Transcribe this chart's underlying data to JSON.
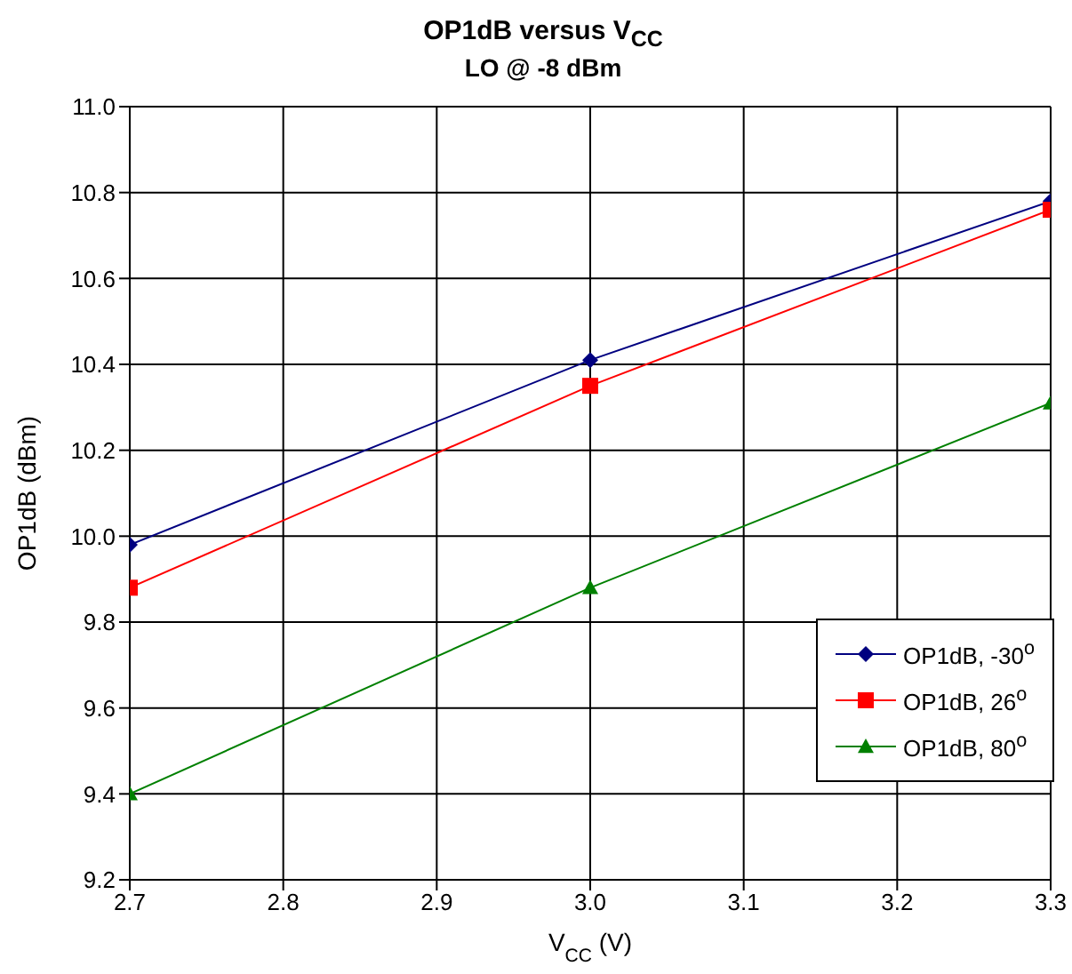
{
  "chart_data": {
    "type": "line",
    "title": "OP1dB versus V$_{CC}$",
    "subtitle": "LO @ -8 dBm",
    "xlabel": "V$_{CC}$ (V)",
    "ylabel": "OP1dB (dBm)",
    "x": [
      2.7,
      3.0,
      3.3
    ],
    "series": [
      {
        "name": "OP1dB, -30$^{o}$",
        "color": "#000080",
        "marker": "diamond",
        "values": [
          9.98,
          10.41,
          10.78
        ]
      },
      {
        "name": "OP1dB, 26$^{o}$",
        "color": "#ff0000",
        "marker": "square",
        "values": [
          9.88,
          10.35,
          10.76
        ]
      },
      {
        "name": "OP1dB, 80$^{o}$",
        "color": "#008000",
        "marker": "triangle",
        "values": [
          9.4,
          9.88,
          10.31
        ]
      }
    ],
    "xlim": [
      2.7,
      3.3
    ],
    "xticks": [
      {
        "value": 2.7,
        "label": "2.7"
      },
      {
        "value": 2.8,
        "label": "2.8"
      },
      {
        "value": 2.9,
        "label": "2.9"
      },
      {
        "value": 3.0,
        "label": "3.0"
      },
      {
        "value": 3.1,
        "label": "3.1"
      },
      {
        "value": 3.2,
        "label": "3.2"
      },
      {
        "value": 3.3,
        "label": "3.3"
      }
    ],
    "ylim": [
      9.2,
      11.0
    ],
    "yticks": [
      {
        "value": 9.2,
        "label": "9.2"
      },
      {
        "value": 9.4,
        "label": "9.4"
      },
      {
        "value": 9.6,
        "label": "9.6"
      },
      {
        "value": 9.8,
        "label": "9.8"
      },
      {
        "value": 10.0,
        "label": "10.0"
      },
      {
        "value": 10.2,
        "label": "10.2"
      },
      {
        "value": 10.4,
        "label": "10.4"
      },
      {
        "value": 10.6,
        "label": "10.6"
      },
      {
        "value": 10.8,
        "label": "10.8"
      },
      {
        "value": 11.0,
        "label": "11.0"
      }
    ],
    "grid": true,
    "legend": "bottom right",
    "line_style": "solid"
  }
}
